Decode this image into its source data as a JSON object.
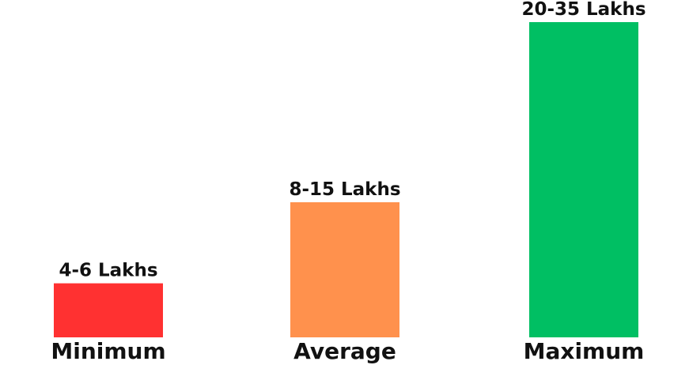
{
  "chart_data": {
    "type": "bar",
    "categories": [
      "Minimum",
      "Average",
      "Maximum"
    ],
    "values": [
      6,
      15,
      35
    ],
    "ranges": [
      [
        4,
        6
      ],
      [
        8,
        15
      ],
      [
        20,
        35
      ]
    ],
    "data_labels": [
      "4-6 Lakhs",
      "8-15 Lakhs",
      "20-35 Lakhs"
    ],
    "colors": [
      "#ff3131",
      "#ff914d",
      "#00bf63"
    ],
    "title": "",
    "xlabel": "",
    "ylabel": "",
    "ylim": [
      0,
      35
    ],
    "grid": false,
    "legend": "none"
  }
}
